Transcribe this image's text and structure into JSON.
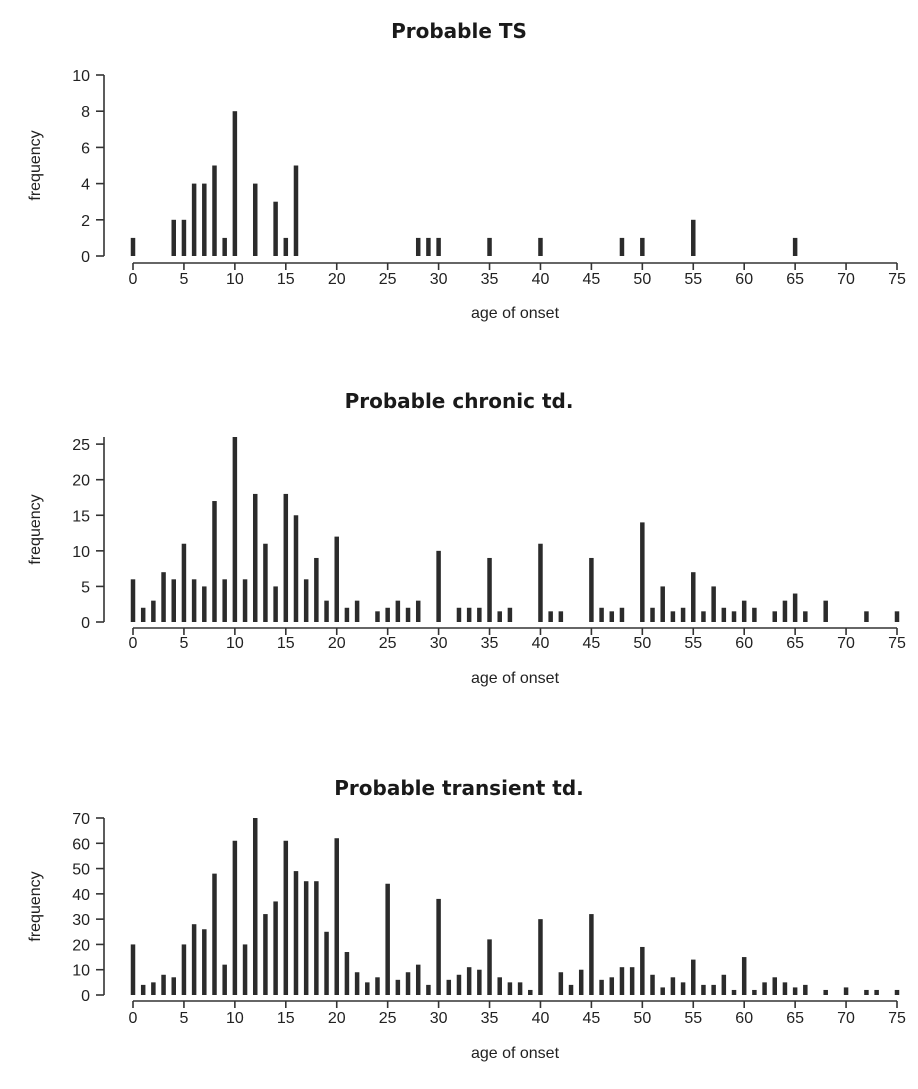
{
  "chart_data": [
    {
      "type": "bar",
      "title": "Probable TS",
      "xlabel": "age of onset",
      "ylabel": "frequency",
      "xlim": [
        0,
        75
      ],
      "ylim": [
        0,
        10
      ],
      "xticks": [
        0,
        5,
        10,
        15,
        20,
        25,
        30,
        35,
        40,
        45,
        50,
        55,
        60,
        65,
        70,
        75
      ],
      "yticks": [
        0,
        2,
        4,
        6,
        8,
        10
      ],
      "grid": false,
      "x": [
        0,
        4,
        5,
        6,
        7,
        8,
        9,
        10,
        12,
        14,
        15,
        16,
        28,
        29,
        30,
        35,
        40,
        48,
        50,
        55,
        65
      ],
      "values": [
        1,
        2,
        2,
        4,
        4,
        5,
        1,
        8,
        4,
        3,
        1,
        5,
        1,
        1,
        1,
        1,
        1,
        1,
        1,
        2,
        1
      ]
    },
    {
      "type": "bar",
      "title": "Probable chronic td.",
      "xlabel": "age of onset",
      "ylabel": "frequency",
      "xlim": [
        0,
        75
      ],
      "ylim": [
        0,
        26
      ],
      "xticks": [
        0,
        5,
        10,
        15,
        20,
        25,
        30,
        35,
        40,
        45,
        50,
        55,
        60,
        65,
        70,
        75
      ],
      "yticks": [
        0,
        5,
        10,
        15,
        20,
        25
      ],
      "grid": false,
      "x": [
        0,
        1,
        2,
        3,
        4,
        5,
        6,
        7,
        8,
        9,
        10,
        11,
        12,
        13,
        14,
        15,
        16,
        17,
        18,
        19,
        20,
        21,
        22,
        24,
        25,
        26,
        27,
        28,
        30,
        32,
        33,
        34,
        35,
        36,
        37,
        40,
        41,
        42,
        45,
        46,
        47,
        48,
        50,
        51,
        52,
        53,
        54,
        55,
        56,
        57,
        58,
        59,
        60,
        61,
        63,
        64,
        65,
        66,
        68,
        72,
        75
      ],
      "values": [
        6,
        2,
        3,
        7,
        6,
        11,
        6,
        5,
        17,
        6,
        26,
        6,
        18,
        11,
        5,
        18,
        15,
        6,
        9,
        3,
        12,
        2,
        3,
        1.5,
        2,
        3,
        2,
        3,
        10,
        2,
        2,
        2,
        9,
        1.5,
        2,
        11,
        1.5,
        1.5,
        9,
        2,
        1.5,
        2,
        14,
        2,
        5,
        1.5,
        2,
        7,
        1.5,
        5,
        2,
        1.5,
        3,
        2,
        1.5,
        3,
        4,
        1.5,
        3,
        1.5,
        1.5
      ]
    },
    {
      "type": "bar",
      "title": "Probable transient td.",
      "xlabel": "age of onset",
      "ylabel": "frequency",
      "xlim": [
        0,
        75
      ],
      "ylim": [
        0,
        70
      ],
      "xticks": [
        0,
        5,
        10,
        15,
        20,
        25,
        30,
        35,
        40,
        45,
        50,
        55,
        60,
        65,
        70,
        75
      ],
      "yticks": [
        0,
        10,
        20,
        30,
        40,
        50,
        60,
        70
      ],
      "grid": false,
      "x": [
        0,
        1,
        2,
        3,
        4,
        5,
        6,
        7,
        8,
        9,
        10,
        11,
        12,
        13,
        14,
        15,
        16,
        17,
        18,
        19,
        20,
        21,
        22,
        23,
        24,
        25,
        26,
        27,
        28,
        29,
        30,
        31,
        32,
        33,
        34,
        35,
        36,
        37,
        38,
        39,
        40,
        42,
        43,
        44,
        45,
        46,
        47,
        48,
        49,
        50,
        51,
        52,
        53,
        54,
        55,
        56,
        57,
        58,
        59,
        60,
        61,
        62,
        63,
        64,
        65,
        66,
        68,
        70,
        72,
        73,
        75
      ],
      "values": [
        20,
        4,
        5,
        8,
        7,
        20,
        28,
        26,
        48,
        12,
        61,
        20,
        70,
        32,
        37,
        61,
        49,
        45,
        45,
        25,
        62,
        17,
        9,
        5,
        7,
        44,
        6,
        9,
        12,
        4,
        38,
        6,
        8,
        11,
        10,
        22,
        7,
        5,
        5,
        2,
        30,
        9,
        4,
        10,
        32,
        6,
        7,
        11,
        11,
        19,
        8,
        3,
        7,
        5,
        14,
        4,
        4,
        8,
        2,
        15,
        2,
        5,
        7,
        5,
        3,
        4,
        2,
        3,
        2,
        2,
        2
      ]
    }
  ]
}
